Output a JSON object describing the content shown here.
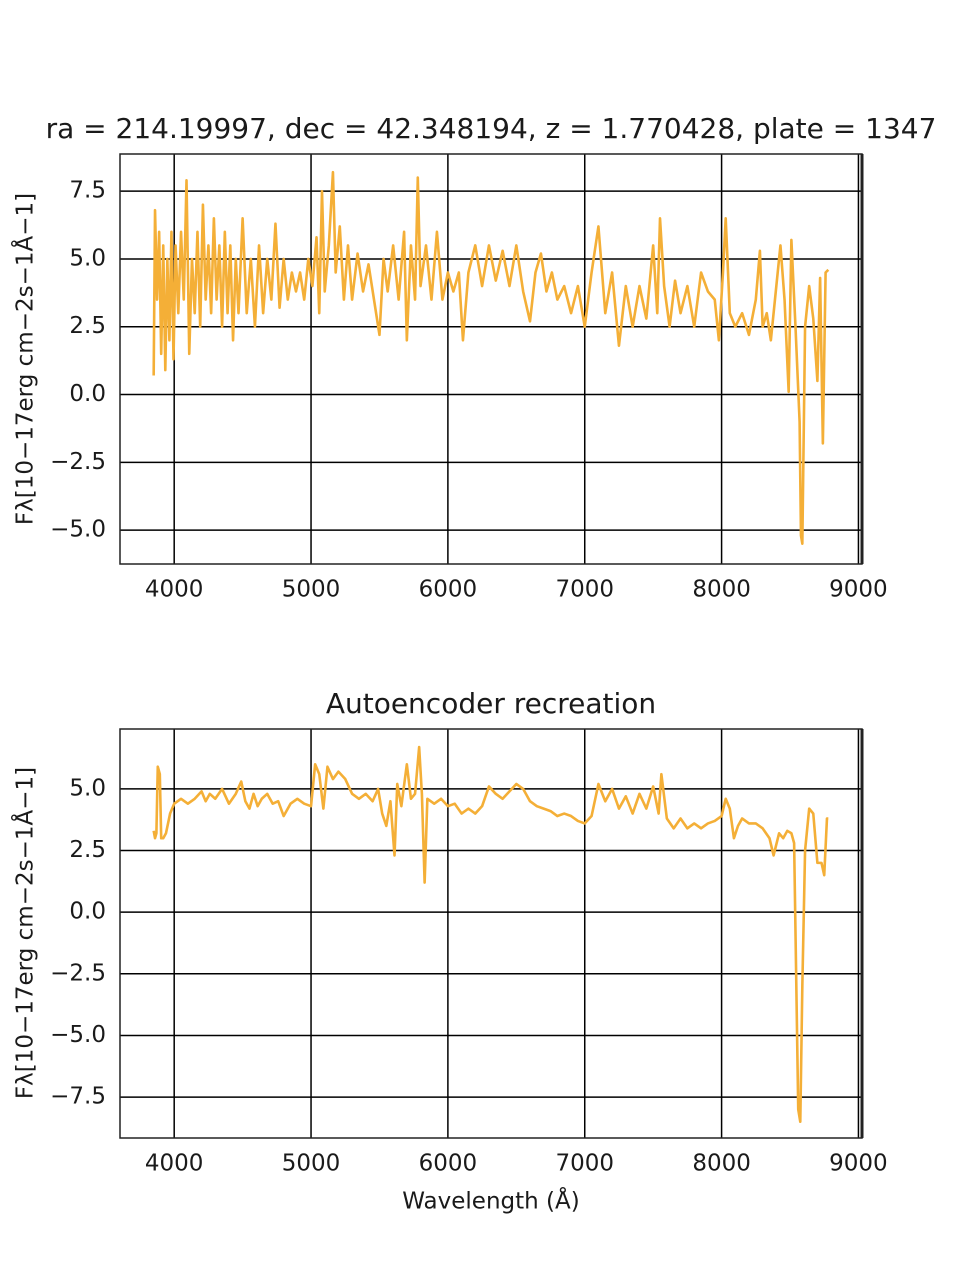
{
  "chart_data": [
    {
      "type": "line",
      "title": "ra = 214.19997, dec = 42.348194, z = 1.770428, plate = 1347",
      "ylabel": "Fλ[10−17erg cm−2s−1Å−1]",
      "color": "#f4af37",
      "grid": true,
      "xlim": [
        3604,
        9026
      ],
      "ylim": [
        -6.25,
        8.87
      ],
      "xticks": [
        4000,
        5000,
        6000,
        7000,
        8000,
        9000
      ],
      "yticks": [
        {
          "value": -5,
          "label": "−5.0"
        },
        {
          "value": -2.5,
          "label": "−2.5"
        },
        {
          "value": 0,
          "label": "0.0"
        },
        2.5,
        {
          "value": 5,
          "label": "5.0"
        },
        7.5
      ],
      "x": [
        3850,
        3860,
        3875,
        3890,
        3905,
        3920,
        3935,
        3950,
        3965,
        3980,
        3995,
        4010,
        4030,
        4050,
        4070,
        4090,
        4110,
        4130,
        4150,
        4170,
        4190,
        4210,
        4230,
        4250,
        4270,
        4290,
        4310,
        4330,
        4350,
        4370,
        4390,
        4410,
        4430,
        4450,
        4470,
        4500,
        4530,
        4560,
        4590,
        4620,
        4650,
        4680,
        4710,
        4740,
        4770,
        4800,
        4830,
        4860,
        4890,
        4920,
        4950,
        4980,
        5010,
        5040,
        5060,
        5080,
        5100,
        5130,
        5160,
        5180,
        5210,
        5240,
        5270,
        5300,
        5340,
        5380,
        5420,
        5460,
        5500,
        5530,
        5560,
        5600,
        5640,
        5680,
        5700,
        5730,
        5760,
        5780,
        5800,
        5840,
        5880,
        5920,
        5960,
        6000,
        6040,
        6080,
        6110,
        6150,
        6200,
        6250,
        6300,
        6350,
        6400,
        6450,
        6500,
        6550,
        6600,
        6640,
        6680,
        6720,
        6760,
        6800,
        6850,
        6900,
        6950,
        7000,
        7050,
        7100,
        7150,
        7200,
        7250,
        7300,
        7350,
        7400,
        7450,
        7500,
        7530,
        7550,
        7580,
        7620,
        7660,
        7700,
        7750,
        7800,
        7850,
        7900,
        7950,
        7980,
        8010,
        8030,
        8060,
        8100,
        8150,
        8200,
        8250,
        8280,
        8300,
        8330,
        8360,
        8400,
        8430,
        8460,
        8490,
        8510,
        8540,
        8570,
        8580,
        8590,
        8610,
        8640,
        8670,
        8700,
        8720,
        8740,
        8760,
        8780
      ],
      "values": [
        0.7,
        6.8,
        3.5,
        6.0,
        1.5,
        5.5,
        0.9,
        5.0,
        2.0,
        6.0,
        1.3,
        5.5,
        3.0,
        6.0,
        3.5,
        7.9,
        1.5,
        5.0,
        3.0,
        6.0,
        2.5,
        7.0,
        3.5,
        5.5,
        3.0,
        6.5,
        3.5,
        5.5,
        2.5,
        6.0,
        3.0,
        5.5,
        2.0,
        5.0,
        3.0,
        6.5,
        3.0,
        5.0,
        2.5,
        5.5,
        3.0,
        5.0,
        3.5,
        6.3,
        3.2,
        5.0,
        3.5,
        4.5,
        3.8,
        4.5,
        3.5,
        5.0,
        4.0,
        5.8,
        3.0,
        7.5,
        3.8,
        5.5,
        8.2,
        4.5,
        6.2,
        3.5,
        5.5,
        3.5,
        5.2,
        3.8,
        4.8,
        3.5,
        2.2,
        5.0,
        3.8,
        5.5,
        3.5,
        6.0,
        2.0,
        5.5,
        3.5,
        8.0,
        4.0,
        5.5,
        3.5,
        6.0,
        3.5,
        4.5,
        3.8,
        4.5,
        2.0,
        4.5,
        5.5,
        4.0,
        5.5,
        4.2,
        5.3,
        4.0,
        5.5,
        3.8,
        2.7,
        4.5,
        5.2,
        3.8,
        4.5,
        3.5,
        4.0,
        3.0,
        4.0,
        2.5,
        4.5,
        6.2,
        3.0,
        4.5,
        1.8,
        4.0,
        2.5,
        4.0,
        2.8,
        5.5,
        3.0,
        6.5,
        4.0,
        2.5,
        4.2,
        3.0,
        4.0,
        2.5,
        4.5,
        3.8,
        3.5,
        2.0,
        4.5,
        6.5,
        3.0,
        2.5,
        3.0,
        2.2,
        3.5,
        5.3,
        2.5,
        3.0,
        2.0,
        4.0,
        5.5,
        3.5,
        0.1,
        5.7,
        2.5,
        -1.0,
        -5.2,
        -5.5,
        2.5,
        4.0,
        2.8,
        0.5,
        4.3,
        -1.8,
        4.5,
        4.6
      ]
    },
    {
      "type": "line",
      "title": "Autoencoder recreation",
      "xlabel": "Wavelength (Å)",
      "ylabel": "Fλ[10−17erg cm−2s−1Å−1]",
      "color": "#f4af37",
      "grid": true,
      "xlim": [
        3604,
        9026
      ],
      "ylim": [
        -9.16,
        7.43
      ],
      "xticks": [
        4000,
        5000,
        6000,
        7000,
        8000,
        9000
      ],
      "yticks": [
        {
          "value": -7.5,
          "label": "−7.5"
        },
        {
          "value": -5,
          "label": "−5.0"
        },
        {
          "value": -2.5,
          "label": "−2.5"
        },
        {
          "value": 0,
          "label": "0.0"
        },
        2.5,
        {
          "value": 5,
          "label": "5.0"
        }
      ],
      "x": [
        3850,
        3860,
        3870,
        3880,
        3895,
        3905,
        3920,
        3940,
        3970,
        4000,
        4050,
        4100,
        4150,
        4200,
        4230,
        4260,
        4300,
        4350,
        4400,
        4450,
        4490,
        4520,
        4550,
        4580,
        4610,
        4640,
        4680,
        4720,
        4760,
        4800,
        4850,
        4900,
        4950,
        5000,
        5030,
        5060,
        5090,
        5120,
        5160,
        5200,
        5250,
        5300,
        5350,
        5400,
        5450,
        5490,
        5520,
        5550,
        5580,
        5610,
        5630,
        5660,
        5700,
        5730,
        5760,
        5790,
        5810,
        5830,
        5850,
        5900,
        5950,
        6000,
        6050,
        6100,
        6150,
        6200,
        6250,
        6300,
        6350,
        6400,
        6450,
        6500,
        6550,
        6600,
        6650,
        6700,
        6750,
        6800,
        6850,
        6900,
        6950,
        7000,
        7050,
        7100,
        7150,
        7200,
        7250,
        7300,
        7350,
        7400,
        7450,
        7500,
        7540,
        7560,
        7600,
        7650,
        7700,
        7750,
        7800,
        7850,
        7900,
        7950,
        8000,
        8030,
        8060,
        8090,
        8120,
        8150,
        8200,
        8250,
        8300,
        8350,
        8380,
        8420,
        8450,
        8480,
        8510,
        8530,
        8560,
        8575,
        8590,
        8610,
        8640,
        8670,
        8700,
        8730,
        8750,
        8770,
        8780
      ],
      "values": [
        3.3,
        3.0,
        3.2,
        5.9,
        5.6,
        3.0,
        3.0,
        3.2,
        4.0,
        4.4,
        4.6,
        4.4,
        4.6,
        4.9,
        4.5,
        4.8,
        4.6,
        5.0,
        4.4,
        4.8,
        5.3,
        4.5,
        4.2,
        4.8,
        4.3,
        4.6,
        4.8,
        4.4,
        4.5,
        3.9,
        4.4,
        4.6,
        4.4,
        4.3,
        6.0,
        5.6,
        4.2,
        5.9,
        5.4,
        5.7,
        5.4,
        4.8,
        4.6,
        4.8,
        4.5,
        5.0,
        4.0,
        3.5,
        4.5,
        2.3,
        5.2,
        4.3,
        6.0,
        4.6,
        4.8,
        6.7,
        4.8,
        1.2,
        4.6,
        4.4,
        4.6,
        4.3,
        4.4,
        4.0,
        4.2,
        4.0,
        4.3,
        5.1,
        4.8,
        4.6,
        4.9,
        5.2,
        5.0,
        4.5,
        4.3,
        4.2,
        4.1,
        3.9,
        4.0,
        3.9,
        3.7,
        3.6,
        3.9,
        5.2,
        4.5,
        5.0,
        4.2,
        4.7,
        4.0,
        4.8,
        4.2,
        5.1,
        4.0,
        5.6,
        3.8,
        3.4,
        3.8,
        3.4,
        3.6,
        3.4,
        3.6,
        3.7,
        3.9,
        4.6,
        4.2,
        3.0,
        3.5,
        3.8,
        3.6,
        3.6,
        3.4,
        3.0,
        2.3,
        3.2,
        3.0,
        3.3,
        3.2,
        2.8,
        -8.0,
        -8.5,
        -3.0,
        2.5,
        4.2,
        4.0,
        2.0,
        2.0,
        1.5,
        3.8,
        3.8
      ]
    }
  ]
}
